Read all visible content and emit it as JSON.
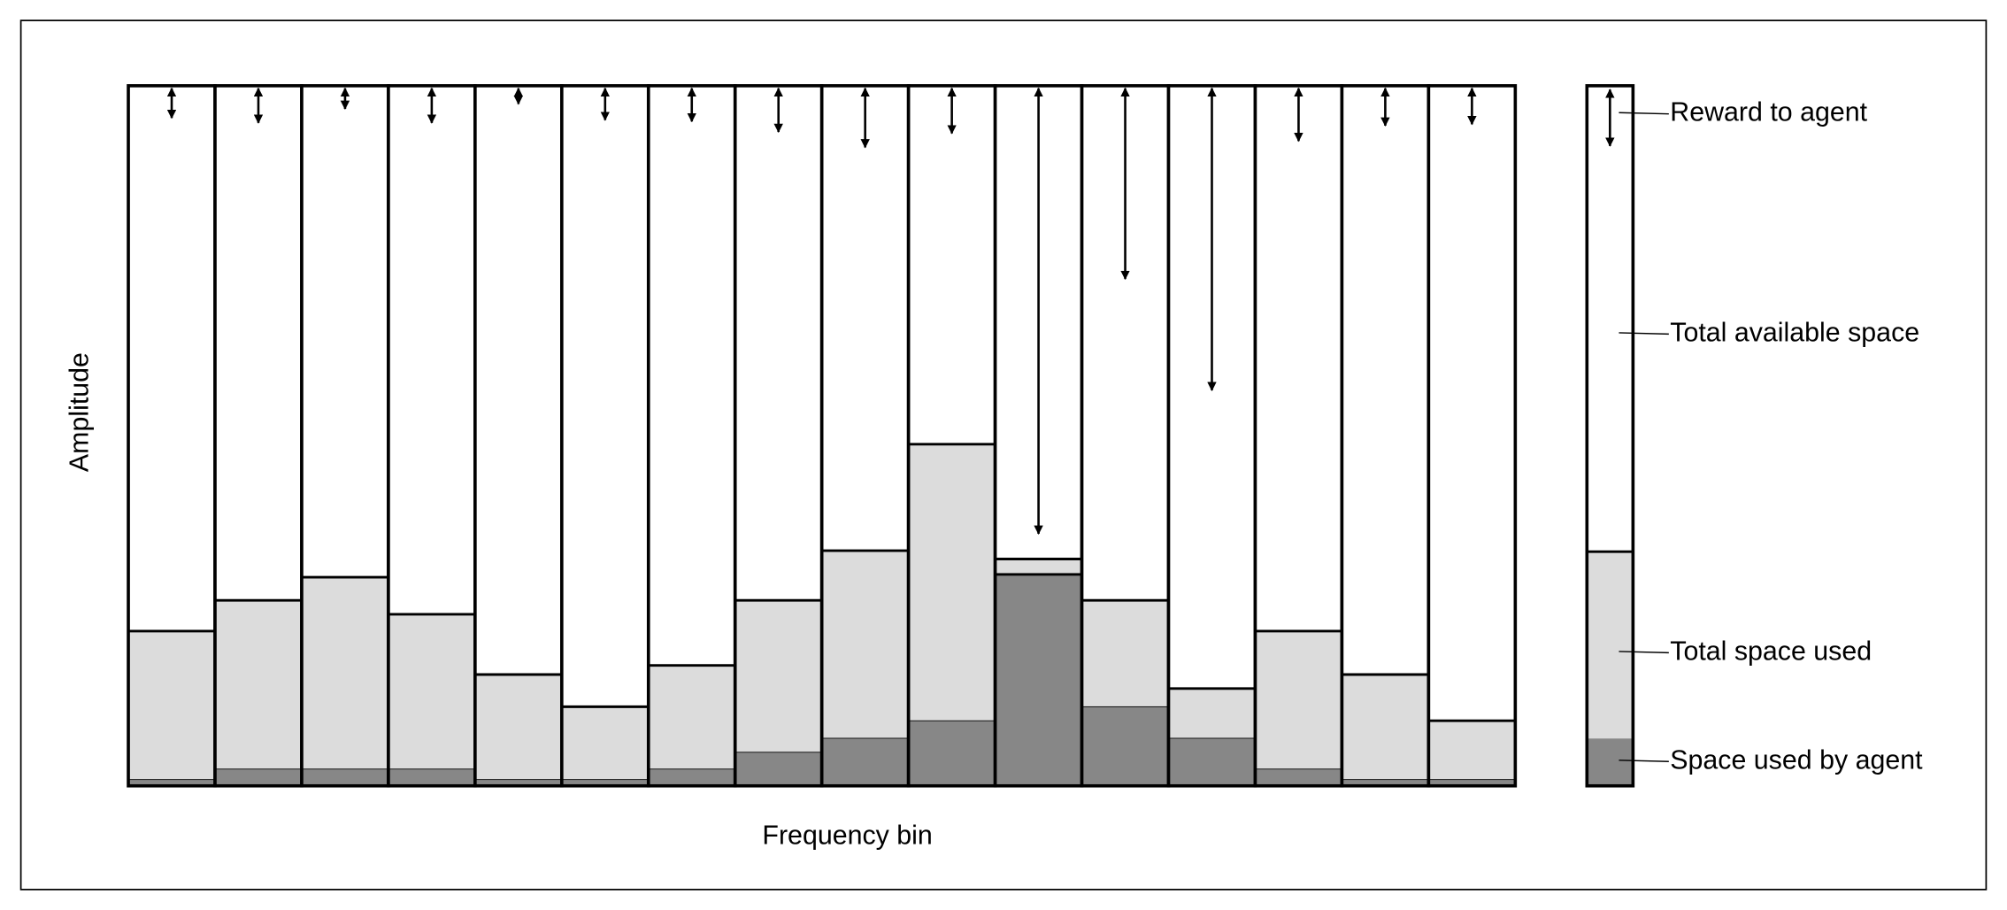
{
  "chart_data": {
    "type": "bar",
    "x_label": "Frequency bin",
    "y_label": "Amplitude",
    "ylim": [
      0,
      100
    ],
    "series": [
      {
        "name": "Total space used",
        "color": "#dcdcdc",
        "values": [
          22.1,
          26.5,
          29.8,
          24.5,
          15.9,
          11.3,
          17.2,
          26.5,
          33.6,
          48.8,
          32.4,
          26.5,
          13.9,
          22.1,
          15.9,
          9.3
        ]
      },
      {
        "name": "Space used by agent",
        "color": "#878787",
        "values": [
          0.9,
          2.4,
          2.4,
          2.4,
          0.9,
          0.9,
          2.4,
          4.8,
          6.8,
          9.3,
          30.2,
          11.3,
          6.8,
          2.4,
          0.9,
          0.9
        ]
      },
      {
        "name": "Reward to agent",
        "color": "#000000",
        "values": [
          4.6,
          5.3,
          3.3,
          5.3,
          2.6,
          4.9,
          5.1,
          6.6,
          8.8,
          6.8,
          64.0,
          27.6,
          43.5,
          7.9,
          5.7,
          5.5
        ]
      }
    ],
    "available_label": "Total available space"
  }
}
